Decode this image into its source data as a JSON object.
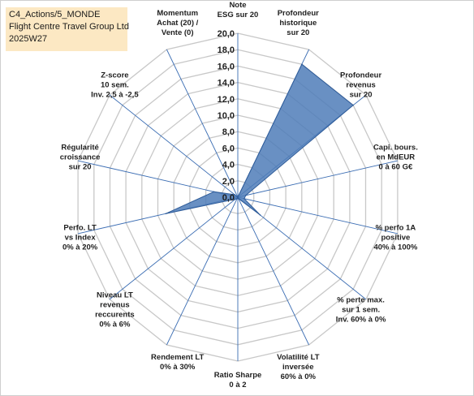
{
  "header": {
    "lines": [
      "C4_Actions/5_MONDE",
      "Flight Centre Travel Group Ltd",
      "2025W27"
    ]
  },
  "colors": {
    "series_fill": "#4f7db8",
    "series_stroke": "#2f5c99",
    "grid": "#c8c8c8",
    "spokes": "#3b6db3"
  },
  "chart_data": {
    "type": "radar",
    "rmin": 0,
    "rmax": 20,
    "tick_step": 2,
    "tick_labels": [
      "0,0",
      "2,0",
      "4,0",
      "6,0",
      "8,0",
      "10,0",
      "12,0",
      "14,0",
      "16,0",
      "18,0",
      "20,0"
    ],
    "axes": [
      [
        "Note",
        "ESG sur 20"
      ],
      [
        "Profondeur",
        "historique",
        "sur 20"
      ],
      [
        "Profondeur",
        "revenus",
        "sur 20"
      ],
      [
        "Capi. bours.",
        "en MdEUR",
        "0 à 60 G€"
      ],
      [
        "% perfo 1A",
        "positive",
        "40% à 100%"
      ],
      [
        "% perte max.",
        "sur 1 sem.",
        "Inv. 60% à 0%"
      ],
      [
        "Volatilité LT",
        "inversée",
        "60% à 0%"
      ],
      [
        "Ratio Sharpe",
        "0 à 2"
      ],
      [
        "Rendement LT",
        "0% à 30%"
      ],
      [
        "Niveau LT",
        "revenus",
        "reccurents",
        "0% à 6%"
      ],
      [
        "Perfo. LT",
        "vs Index",
        "0% à 20%"
      ],
      [
        "Régularité",
        "croissance",
        "sur 20"
      ],
      [
        "Z-score",
        "10 sem.",
        "Inv. 2,5 à -2,5"
      ],
      [
        "Momentum",
        "Achat (20) /",
        "Vente (0)"
      ]
    ],
    "series": [
      {
        "values": [
          0.0,
          18.0,
          18.0,
          1.0,
          0.8,
          3.5,
          0.2,
          0.0,
          0.2,
          0.4,
          9.0,
          3.0,
          0.5,
          0.0
        ]
      }
    ],
    "grid": true,
    "legend": "none"
  }
}
